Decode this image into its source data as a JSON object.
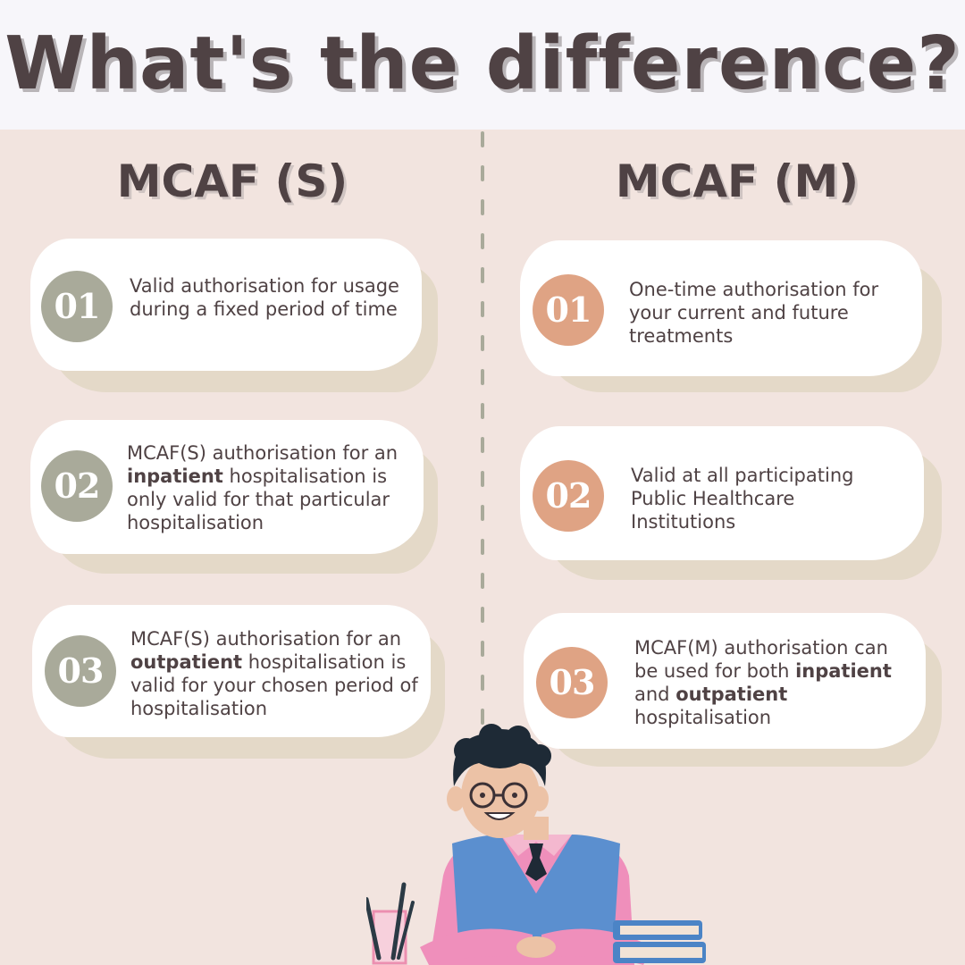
{
  "title": "What's the difference?",
  "columns": {
    "left": {
      "heading": "MCAF (S)",
      "items": [
        {
          "number": "01",
          "text": "Valid authorisation for usage during a fixed period of time"
        },
        {
          "number": "02",
          "pre": "MCAF(S) authorisation for an ",
          "bold": "inpatient",
          "post": " hospitalisation is only valid for that particular hospitalisation"
        },
        {
          "number": "03",
          "pre": "MCAF(S) authorisation for an ",
          "bold": "outpatient",
          "post": " hospitalisation is valid for your chosen period of hospitalisation"
        }
      ]
    },
    "right": {
      "heading": "MCAF (M)",
      "items": [
        {
          "number": "01",
          "text": "One-time authorisation for your current and future treatments"
        },
        {
          "number": "02",
          "text": "Valid at all participating Public Healthcare Institutions"
        },
        {
          "number": "03",
          "pre": "MCAF(M) authorisation can be used for both ",
          "bold": "inpatient",
          "mid": " and ",
          "bold2": "outpatient",
          "post": " hospitalisation"
        }
      ]
    }
  },
  "colors": {
    "background": "#f2e4df",
    "header": "#f7f6fa",
    "text": "#4f4244",
    "badge_left": "#a9aa9a",
    "badge_right": "#dfa384",
    "card_shadow": "#e4d9c8"
  },
  "illustration": "student-at-desk-illustration"
}
